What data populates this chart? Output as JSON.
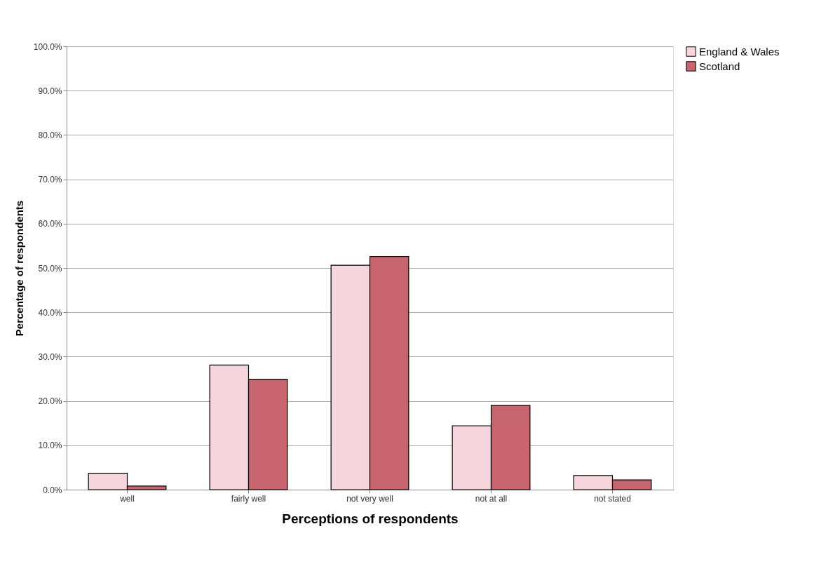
{
  "chart_data": {
    "type": "bar",
    "xlabel": "Perceptions of respondents",
    "ylabel": "Percentage of respondents",
    "categories": [
      "well",
      "fairly well",
      "not very well",
      "not at all",
      "not stated"
    ],
    "series": [
      {
        "name": "England & Wales",
        "color": "#f7d5dc",
        "values": [
          3.7,
          28.1,
          50.6,
          14.4,
          3.2
        ]
      },
      {
        "name": "Scotland",
        "color": "#c8646e",
        "values": [
          0.8,
          24.9,
          52.6,
          19.0,
          2.2
        ]
      }
    ],
    "ylim": [
      0,
      100
    ],
    "yticks": [
      {
        "value": 0,
        "label": "0.0%"
      },
      {
        "value": 10,
        "label": "10.0%"
      },
      {
        "value": 20,
        "label": "20.0%"
      },
      {
        "value": 30,
        "label": "30.0%"
      },
      {
        "value": 40,
        "label": "40.0%"
      },
      {
        "value": 50,
        "label": "50.0%"
      },
      {
        "value": 60,
        "label": "60.0%"
      },
      {
        "value": 70,
        "label": "70.0%"
      },
      {
        "value": 80,
        "label": "80.0%"
      },
      {
        "value": 90,
        "label": "90.0%"
      },
      {
        "value": 100,
        "label": "100.0%"
      }
    ],
    "grid": "y",
    "legend": "right"
  }
}
